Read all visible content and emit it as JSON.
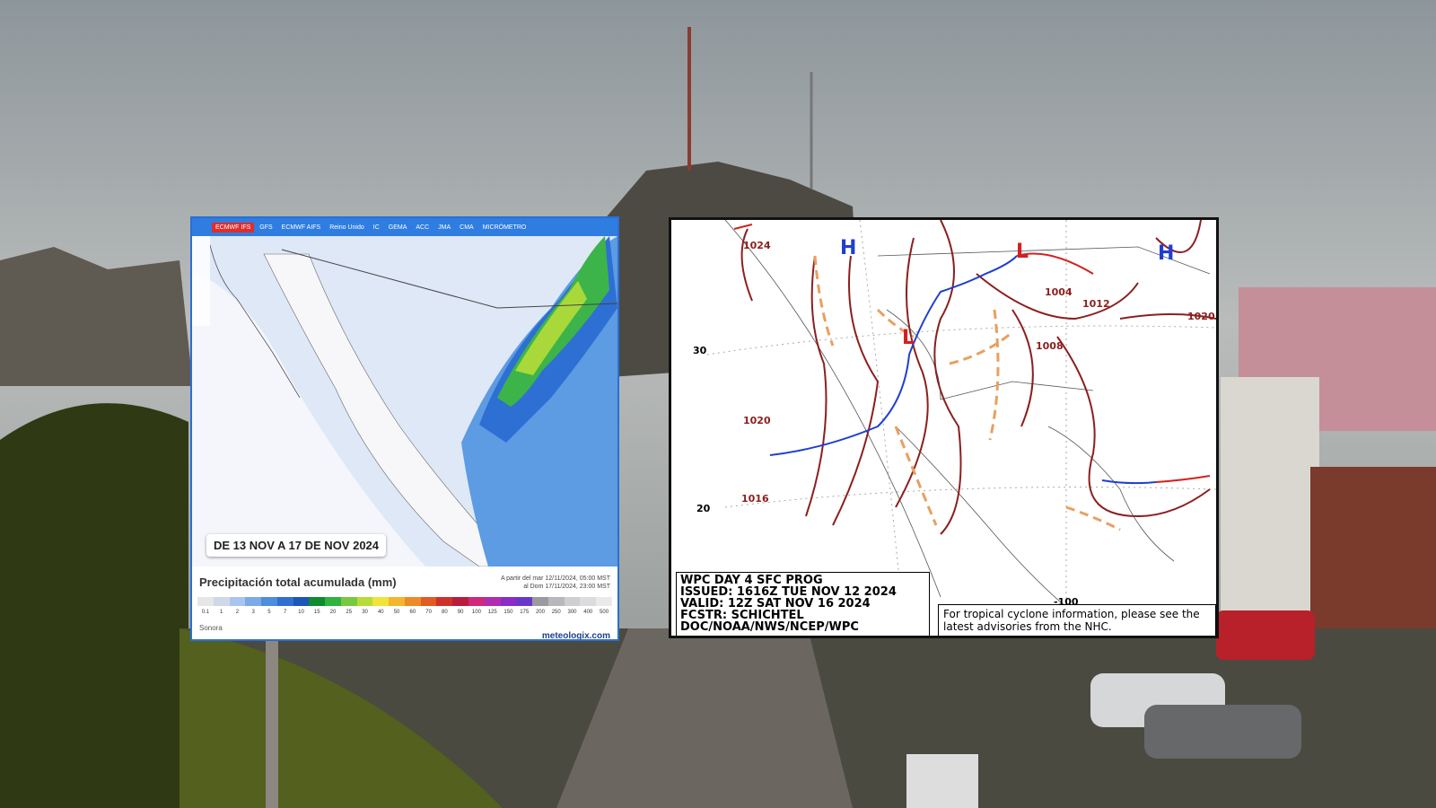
{
  "left_map": {
    "tabs": [
      "ECMWF IFS",
      "GFS",
      "ECMWF AIFS",
      "Reino Unido",
      "IC",
      "GEMA",
      "ACC",
      "JMA",
      "CMA",
      "MICRÓMETRO"
    ],
    "date_label": "DE 13 NOV A 17 DE NOV 2024",
    "legend_title": "Precipitación total acumulada (mm)",
    "period_start": "A partir del mar 12/11/2024, 05:00 MST",
    "period_end": "al Dom 17/11/2024, 23:00 MST",
    "scale_values": [
      0.1,
      1,
      2,
      3,
      5,
      7,
      10,
      15,
      20,
      25,
      30,
      40,
      50,
      60,
      70,
      80,
      90,
      100,
      125,
      150,
      175,
      200,
      250,
      300,
      400,
      500
    ],
    "region": "Sonora",
    "source": "meteologix.com"
  },
  "right_map": {
    "title_lines": [
      "WPC DAY 4 SFC PROG",
      "ISSUED: 1616Z TUE NOV 12 2024",
      "VALID: 12Z SAT NOV 16 2024",
      "FCSTR: SCHICHTEL",
      "DOC/NOAA/NWS/NCEP/WPC"
    ],
    "note": "For tropical cyclone information, please see the latest advisories from the NHC.",
    "isobars": [
      1024,
      1020,
      1016,
      1004,
      1012,
      1020,
      1008
    ],
    "latitudes": [
      30,
      20
    ],
    "longitude": -100,
    "highs": [
      "H",
      "H"
    ],
    "lows": [
      "L",
      "L"
    ]
  }
}
